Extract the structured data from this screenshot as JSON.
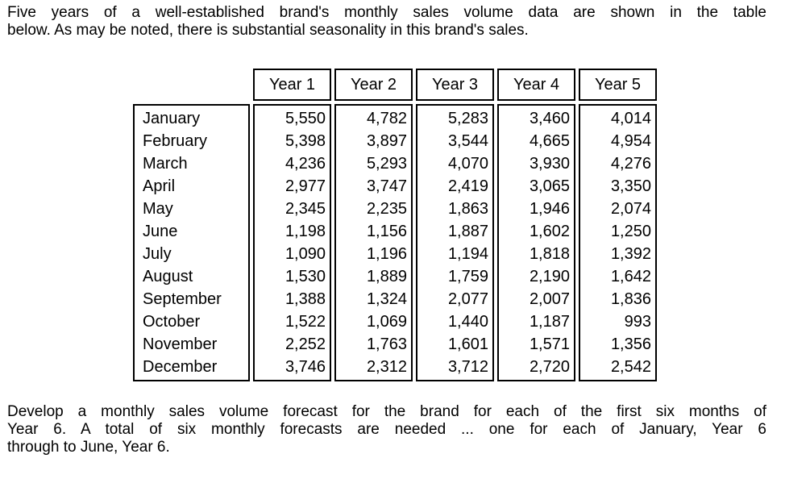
{
  "intro": {
    "lines": [
      "Five years of a well-established brand's monthly sales volume data are shown in the table",
      "below.  As may be noted, there is substantial seasonality in this brand's sales."
    ]
  },
  "table": {
    "months": [
      "January",
      "February",
      "March",
      "April",
      "May",
      "June",
      "July",
      "August",
      "September",
      "October",
      "November",
      "December"
    ],
    "columns": [
      {
        "header": "Year 1",
        "values": [
          "5,550",
          "5,398",
          "4,236",
          "2,977",
          "2,345",
          "1,198",
          "1,090",
          "1,530",
          "1,388",
          "1,522",
          "2,252",
          "3,746"
        ]
      },
      {
        "header": "Year 2",
        "values": [
          "4,782",
          "3,897",
          "5,293",
          "3,747",
          "2,235",
          "1,156",
          "1,196",
          "1,889",
          "1,324",
          "1,069",
          "1,763",
          "2,312"
        ]
      },
      {
        "header": "Year 3",
        "values": [
          "5,283",
          "3,544",
          "4,070",
          "2,419",
          "1,863",
          "1,887",
          "1,194",
          "1,759",
          "2,077",
          "1,440",
          "1,601",
          "3,712"
        ]
      },
      {
        "header": "Year 4",
        "values": [
          "3,460",
          "4,665",
          "3,930",
          "3,065",
          "1,946",
          "1,602",
          "1,818",
          "2,190",
          "2,007",
          "1,187",
          "1,571",
          "2,720"
        ]
      },
      {
        "header": "Year 5",
        "values": [
          "4,014",
          "4,954",
          "4,276",
          "3,350",
          "2,074",
          "1,250",
          "1,392",
          "1,642",
          "1,836",
          "993",
          "1,356",
          "2,542"
        ]
      }
    ]
  },
  "task": {
    "lines": [
      "Develop a monthly sales volume forecast for the brand for each of the first six months of",
      "Year 6.  A total of six monthly forecasts are needed ... one for each of January, Year 6",
      "through to June, Year 6."
    ]
  },
  "colors": {
    "text": "#000000",
    "background": "#ffffff",
    "table_border": "#000000"
  }
}
